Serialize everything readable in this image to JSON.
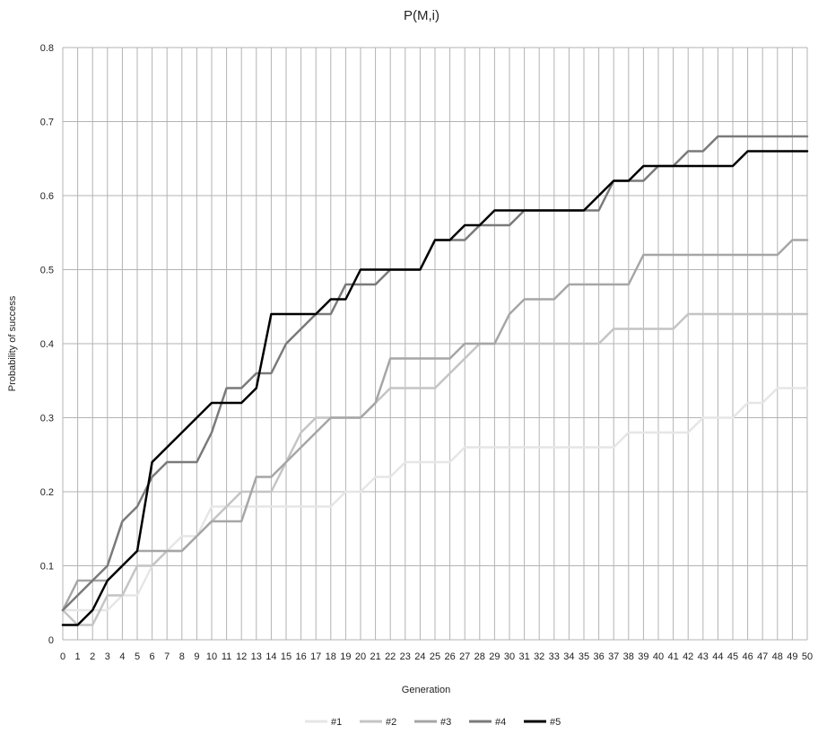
{
  "chart_data": {
    "type": "line",
    "title": "P(M,i)",
    "xlabel": "Generation",
    "ylabel": "Probability of  success",
    "x": [
      0,
      1,
      2,
      3,
      4,
      5,
      6,
      7,
      8,
      9,
      10,
      11,
      12,
      13,
      14,
      15,
      16,
      17,
      18,
      19,
      20,
      21,
      22,
      23,
      24,
      25,
      26,
      27,
      28,
      29,
      30,
      31,
      32,
      33,
      34,
      35,
      36,
      37,
      38,
      39,
      40,
      41,
      42,
      43,
      44,
      45,
      46,
      47,
      48,
      49,
      50
    ],
    "x_tick_labels": [
      "0",
      "1",
      "2",
      "3",
      "4",
      "5",
      "6",
      "7",
      "8",
      "9",
      "10",
      "11",
      "12",
      "13",
      "14",
      "15",
      "16",
      "17",
      "18",
      "19",
      "20",
      "21",
      "22",
      "23",
      "24",
      "25",
      "26",
      "27",
      "28",
      "29",
      "30",
      "31",
      "32",
      "33",
      "34",
      "35",
      "36",
      "37",
      "38",
      "39",
      "40",
      "41",
      "42",
      "43",
      "44",
      "45",
      "46",
      "47",
      "48",
      "49",
      "50"
    ],
    "y_tick_labels": [
      "0",
      "0.1",
      "0.2",
      "0.3",
      "0.4",
      "0.5",
      "0.6",
      "0.7",
      "0.8"
    ],
    "ylim": [
      0,
      0.8
    ],
    "grid": true,
    "legend_position": "bottom",
    "series": [
      {
        "name": "#1",
        "color": "#e6e6e6",
        "values": [
          0.04,
          0.04,
          0.04,
          0.04,
          0.06,
          0.06,
          0.1,
          0.12,
          0.14,
          0.14,
          0.18,
          0.18,
          0.18,
          0.18,
          0.18,
          0.18,
          0.18,
          0.18,
          0.18,
          0.2,
          0.2,
          0.22,
          0.22,
          0.24,
          0.24,
          0.24,
          0.24,
          0.26,
          0.26,
          0.26,
          0.26,
          0.26,
          0.26,
          0.26,
          0.26,
          0.26,
          0.26,
          0.26,
          0.28,
          0.28,
          0.28,
          0.28,
          0.28,
          0.3,
          0.3,
          0.3,
          0.32,
          0.32,
          0.34,
          0.34,
          0.34
        ]
      },
      {
        "name": "#2",
        "color": "#c4c4c4",
        "values": [
          0.04,
          0.02,
          0.02,
          0.06,
          0.06,
          0.1,
          0.1,
          0.12,
          0.12,
          0.14,
          0.16,
          0.18,
          0.2,
          0.2,
          0.2,
          0.24,
          0.28,
          0.3,
          0.3,
          0.3,
          0.3,
          0.32,
          0.34,
          0.34,
          0.34,
          0.34,
          0.36,
          0.38,
          0.4,
          0.4,
          0.4,
          0.4,
          0.4,
          0.4,
          0.4,
          0.4,
          0.4,
          0.42,
          0.42,
          0.42,
          0.42,
          0.42,
          0.44,
          0.44,
          0.44,
          0.44,
          0.44,
          0.44,
          0.44,
          0.44,
          0.44
        ]
      },
      {
        "name": "#3",
        "color": "#a6a6a6",
        "values": [
          0.04,
          0.08,
          0.08,
          0.08,
          0.1,
          0.12,
          0.12,
          0.12,
          0.12,
          0.14,
          0.16,
          0.16,
          0.16,
          0.22,
          0.22,
          0.24,
          0.26,
          0.28,
          0.3,
          0.3,
          0.3,
          0.32,
          0.38,
          0.38,
          0.38,
          0.38,
          0.38,
          0.4,
          0.4,
          0.4,
          0.44,
          0.46,
          0.46,
          0.46,
          0.48,
          0.48,
          0.48,
          0.48,
          0.48,
          0.52,
          0.52,
          0.52,
          0.52,
          0.52,
          0.52,
          0.52,
          0.52,
          0.52,
          0.52,
          0.54,
          0.54
        ]
      },
      {
        "name": "#4",
        "color": "#7a7a7a",
        "values": [
          0.04,
          0.06,
          0.08,
          0.1,
          0.16,
          0.18,
          0.22,
          0.24,
          0.24,
          0.24,
          0.28,
          0.34,
          0.34,
          0.36,
          0.36,
          0.4,
          0.42,
          0.44,
          0.44,
          0.48,
          0.48,
          0.48,
          0.5,
          0.5,
          0.5,
          0.54,
          0.54,
          0.54,
          0.56,
          0.56,
          0.56,
          0.58,
          0.58,
          0.58,
          0.58,
          0.58,
          0.58,
          0.62,
          0.62,
          0.62,
          0.64,
          0.64,
          0.66,
          0.66,
          0.68,
          0.68,
          0.68,
          0.68,
          0.68,
          0.68,
          0.68
        ]
      },
      {
        "name": "#5",
        "color": "#000000",
        "values": [
          0.02,
          0.02,
          0.04,
          0.08,
          0.1,
          0.12,
          0.24,
          0.26,
          0.28,
          0.3,
          0.32,
          0.32,
          0.32,
          0.34,
          0.44,
          0.44,
          0.44,
          0.44,
          0.46,
          0.46,
          0.5,
          0.5,
          0.5,
          0.5,
          0.5,
          0.54,
          0.54,
          0.56,
          0.56,
          0.58,
          0.58,
          0.58,
          0.58,
          0.58,
          0.58,
          0.58,
          0.6,
          0.62,
          0.62,
          0.64,
          0.64,
          0.64,
          0.64,
          0.64,
          0.64,
          0.64,
          0.66,
          0.66,
          0.66,
          0.66,
          0.66
        ]
      }
    ]
  }
}
